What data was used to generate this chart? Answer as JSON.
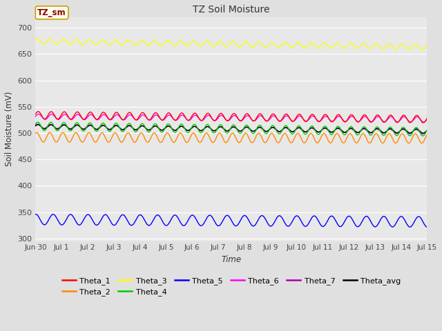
{
  "title": "TZ Soil Moisture",
  "xlabel": "Time",
  "ylabel": "Soil Moisture (mV)",
  "annotation": "TZ_sm",
  "ylim": [
    295,
    720
  ],
  "yticks": [
    300,
    350,
    400,
    450,
    500,
    550,
    600,
    650,
    700
  ],
  "fig_bg": "#e0e0e0",
  "axes_bg": "#e8e8e8",
  "series": {
    "Theta_1": {
      "color": "#ff0000",
      "base": 534,
      "amp": 7,
      "trend": -0.5,
      "freq": 2.0,
      "phase": 0.3
    },
    "Theta_2": {
      "color": "#ff8800",
      "base": 492,
      "amp": 9,
      "trend": -0.15,
      "freq": 2.0,
      "phase": 1.0
    },
    "Theta_3": {
      "color": "#ffff00",
      "base": 674,
      "amp": 5,
      "trend": -0.7,
      "freq": 2.0,
      "phase": 0.8
    },
    "Theta_4": {
      "color": "#00cc00",
      "base": 513,
      "amp": 8,
      "trend": -0.7,
      "freq": 2.0,
      "phase": 0.5
    },
    "Theta_5": {
      "color": "#0000ff",
      "base": 336,
      "amp": 10,
      "trend": -0.3,
      "freq": 1.5,
      "phase": 1.5
    },
    "Theta_6": {
      "color": "#ff00ff",
      "base": 531,
      "amp": 5,
      "trend": -0.35,
      "freq": 2.0,
      "phase": 0.1
    },
    "Theta_7": {
      "color": "#aa00aa",
      "base": 513,
      "amp": 4,
      "trend": -0.7,
      "freq": 2.0,
      "phase": 0.6
    },
    "Theta_avg": {
      "color": "#000000",
      "base": 512,
      "amp": 4,
      "trend": -0.55,
      "freq": 2.0,
      "phase": 0.4
    }
  },
  "n_points": 720,
  "days": 15,
  "xtick_labels": [
    "Jun 30",
    "Jul 1",
    "Jul 2",
    "Jul 3",
    "Jul 4",
    "Jul 5",
    "Jul 6",
    "Jul 7",
    "Jul 8",
    "Jul 9",
    "Jul 10",
    "Jul 11",
    "Jul 12",
    "Jul 13",
    "Jul 14",
    "Jul 15"
  ],
  "legend_order": [
    "Theta_1",
    "Theta_2",
    "Theta_3",
    "Theta_4",
    "Theta_5",
    "Theta_6",
    "Theta_7",
    "Theta_avg"
  ]
}
